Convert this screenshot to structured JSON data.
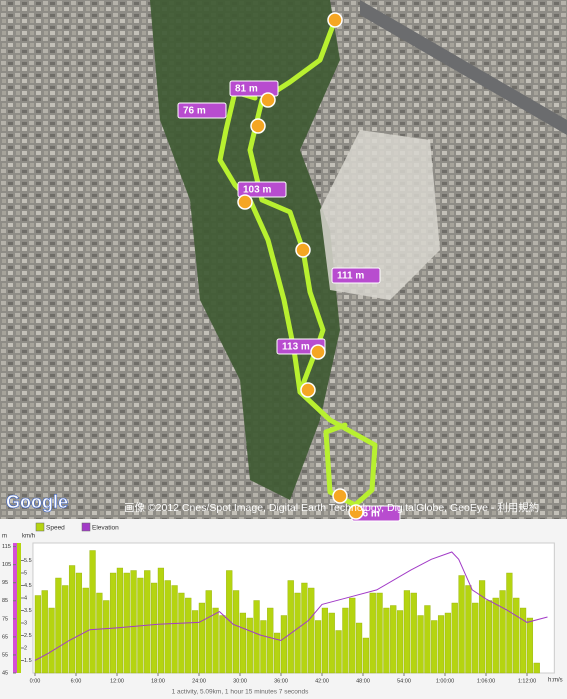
{
  "map": {
    "markers": [
      "81 m",
      "76 m",
      "103 m",
      "111 m",
      "113 m",
      "76 m"
    ],
    "attribution": "画像 ©2012 Cnes/Spot Image, Digital Earth Technology, DigitalGlobe, GeoEye - 利用規約",
    "logo": "Google"
  },
  "chart_data": {
    "type": "bar",
    "ylabel": "m",
    "y2label": "km/h",
    "xlabel": "h:m/s",
    "footer": "1 activity, 5.09km, 1 hour 15 minutes 7 seconds",
    "xlim": [
      -0.3,
      76
    ],
    "xticks": [
      {
        "value": 0,
        "label": "0:00"
      },
      {
        "value": 6,
        "label": "6:00"
      },
      {
        "value": 12,
        "label": "12:00"
      },
      {
        "value": 18,
        "label": "18:00"
      },
      {
        "value": 24,
        "label": "24:00"
      },
      {
        "value": 30,
        "label": "30:00"
      },
      {
        "value": 36,
        "label": "36:00"
      },
      {
        "value": 42,
        "label": "42:00"
      },
      {
        "value": 48,
        "label": "48:00"
      },
      {
        "value": 54,
        "label": "54:00"
      },
      {
        "value": 60,
        "label": "1:00:00"
      },
      {
        "value": 66,
        "label": "1:06:00"
      },
      {
        "value": 72,
        "label": "1:12:00"
      }
    ],
    "ylim": [
      45,
      117
    ],
    "yticks": [
      45,
      55,
      65,
      75,
      85,
      95,
      105,
      115
    ],
    "y2lim": [
      1,
      6.2
    ],
    "y2ticks": [
      1.5,
      2,
      2.5,
      3,
      3.5,
      4,
      4.5,
      5,
      5.5
    ],
    "series": [
      {
        "name": "Speed",
        "color": "#b5d411",
        "axis": "y2",
        "type": "bar",
        "x": [
          0,
          1,
          2,
          3,
          4,
          5,
          6,
          7,
          8,
          9,
          10,
          11,
          12,
          13,
          14,
          15,
          16,
          17,
          18,
          19,
          20,
          21,
          22,
          23,
          24,
          25,
          26,
          27,
          28,
          29,
          30,
          31,
          32,
          33,
          34,
          35,
          36,
          37,
          38,
          39,
          40,
          41,
          42,
          43,
          44,
          45,
          46,
          47,
          48,
          49,
          50,
          51,
          52,
          53,
          54,
          55,
          56,
          57,
          58,
          59,
          60,
          61,
          62,
          63,
          64,
          65,
          66,
          67,
          68,
          69,
          70,
          71,
          72,
          73
        ],
        "values": [
          4.1,
          4.3,
          3.6,
          4.8,
          4.5,
          5.3,
          5.0,
          4.4,
          5.9,
          4.2,
          3.9,
          5.0,
          5.2,
          5.0,
          5.1,
          4.8,
          5.1,
          4.6,
          5.2,
          4.7,
          4.5,
          4.2,
          4.0,
          3.5,
          3.8,
          4.3,
          3.6,
          3.3,
          5.1,
          4.3,
          3.4,
          3.2,
          3.9,
          3.1,
          3.6,
          2.6,
          3.3,
          4.7,
          4.2,
          4.6,
          4.4,
          3.1,
          3.6,
          3.4,
          2.7,
          3.6,
          4.0,
          3.0,
          2.4,
          4.2,
          4.2,
          3.6,
          3.7,
          3.5,
          4.3,
          4.2,
          3.3,
          3.7,
          3.1,
          3.3,
          3.4,
          3.8,
          4.9,
          4.5,
          3.8,
          4.7,
          3.9,
          4.0,
          4.3,
          5.0,
          4.0,
          3.6,
          3.2,
          1.4
        ]
      },
      {
        "name": "Elevation",
        "color": "#a23bc7",
        "type": "line",
        "x": [
          0,
          2,
          5,
          8,
          12,
          18,
          24,
          27,
          29,
          33,
          36,
          40,
          42,
          46,
          50,
          55,
          58,
          61,
          62,
          64,
          66,
          69,
          72,
          75
        ],
        "values": [
          52,
          56,
          63,
          69,
          70,
          72,
          73,
          79,
          72,
          66,
          63,
          74,
          83,
          87,
          91,
          102,
          108,
          112,
          108,
          91,
          86,
          80,
          73,
          76
        ]
      }
    ]
  }
}
